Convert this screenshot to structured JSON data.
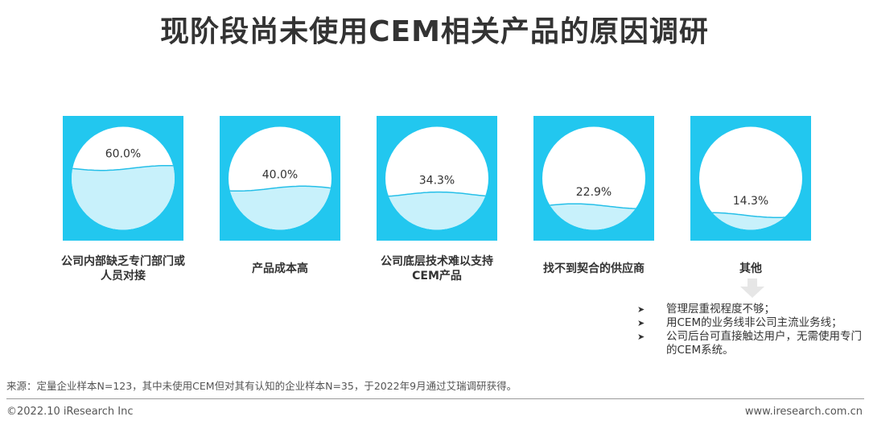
{
  "title": "现阶段尚未使用CEM相关产品的原因调研",
  "chart_data": {
    "type": "bar",
    "categories": [
      "公司内部缺乏专门部门或人员对接",
      "产品成本高",
      "公司底层技术难以支持CEM产品",
      "找不到契合的供应商",
      "其他"
    ],
    "category_lines": [
      [
        "公司内部缺乏专门部门或",
        "人员对接"
      ],
      [
        "产品成本高"
      ],
      [
        "公司底层技术难以支持",
        "CEM产品"
      ],
      [
        "找不到契合的供应商"
      ],
      [
        "其他"
      ]
    ],
    "values": [
      60.0,
      40.0,
      34.3,
      22.9,
      14.3
    ],
    "value_labels": [
      "60.0%",
      "40.0%",
      "34.3%",
      "22.9%",
      "14.3%"
    ],
    "ylim": [
      0,
      100
    ],
    "colors": {
      "tile": "#22c7ef",
      "circle": "#ffffff",
      "fill": "#c8f1fb",
      "wave": "#26bfe8",
      "text": "#333333"
    }
  },
  "other_notes": [
    "管理层重视程度不够；",
    "用CEM的业务线非公司主流业务线；",
    "公司后台可直接触达用户，无需使用专门的CEM系统。"
  ],
  "footer": {
    "source": "来源：定量企业样本N=123，其中未使用CEM但对其有认知的企业样本N=35，于2022年9月通过艾瑞调研获得。",
    "copyright": "©2022.10 iResearch Inc",
    "website": "www.iresearch.com.cn"
  }
}
